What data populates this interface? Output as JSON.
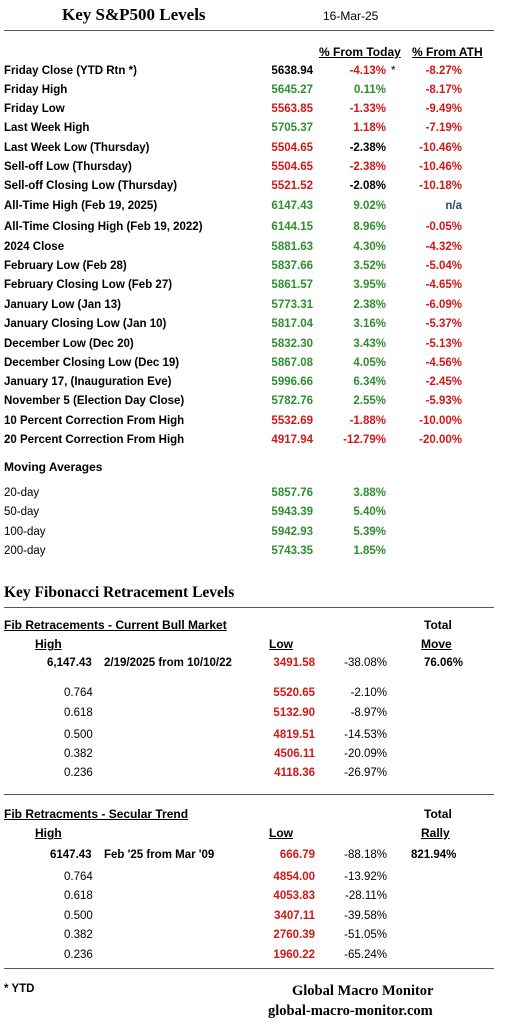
{
  "title": "Key S&P500 Levels",
  "date": "16-Mar-25",
  "headers": {
    "from_today": "% From Today",
    "from_ath": "% From ATH"
  },
  "rows": [
    {
      "label": "Friday Close (YTD Rtn *)",
      "value": "5638.94",
      "value_color": "#000000",
      "pct": "-4.13%",
      "pct_color": "#d01818",
      "mark": "*",
      "ath": "-8.27%",
      "ath_color": "#d01818"
    },
    {
      "label": "Friday High",
      "value": "5645.27",
      "value_color": "#2f8f2f",
      "pct": "0.11%",
      "pct_color": "#2f8f2f",
      "mark": "",
      "ath": "-8.17%",
      "ath_color": "#d01818"
    },
    {
      "label": "Friday Low",
      "value": "5563.85",
      "value_color": "#d01818",
      "pct": "-1.33%",
      "pct_color": "#d01818",
      "mark": "",
      "ath": "-9.49%",
      "ath_color": "#d01818"
    },
    {
      "label": "Last Week High",
      "value": "5705.37",
      "value_color": "#2f8f2f",
      "pct": "1.18%",
      "pct_color": "#d01818",
      "mark": "",
      "ath": "-7.19%",
      "ath_color": "#d01818"
    },
    {
      "label": "Last Week Low (Thursday)",
      "value": "5504.65",
      "value_color": "#d01818",
      "pct": "-2.38%",
      "pct_color": "#000000",
      "mark": "",
      "ath": "-10.46%",
      "ath_color": "#d01818"
    },
    {
      "label": "Sell-off Low (Thursday)",
      "value": "5504.65",
      "value_color": "#d01818",
      "pct": "-2.38%",
      "pct_color": "#d01818",
      "mark": "",
      "ath": "-10.46%",
      "ath_color": "#d01818"
    },
    {
      "label": "Sell-off Closing Low (Thursday)",
      "value": "5521.52",
      "value_color": "#d01818",
      "pct": "-2.08%",
      "pct_color": "#000000",
      "mark": "",
      "ath": "-10.18%",
      "ath_color": "#d01818"
    },
    {
      "label": "All-Time High (Feb 19, 2025)",
      "value": "6147.43",
      "value_color": "#2f8f2f",
      "pct": "9.02%",
      "pct_color": "#2f8f2f",
      "mark": "",
      "ath": "n/a",
      "ath_color": "#1f4e79"
    },
    {
      "label": "All-Time Closing High (Feb 19, 2022)",
      "value": "6144.15",
      "value_color": "#2f8f2f",
      "pct": "8.96%",
      "pct_color": "#2f8f2f",
      "mark": "",
      "ath": "-0.05%",
      "ath_color": "#d01818"
    },
    {
      "label": "2024 Close",
      "value": "5881.63",
      "value_color": "#2f8f2f",
      "pct": "4.30%",
      "pct_color": "#2f8f2f",
      "mark": "",
      "ath": "-4.32%",
      "ath_color": "#d01818"
    },
    {
      "label": "February Low (Feb 28)",
      "value": "5837.66",
      "value_color": "#2f8f2f",
      "pct": "3.52%",
      "pct_color": "#2f8f2f",
      "mark": "",
      "ath": "-5.04%",
      "ath_color": "#d01818"
    },
    {
      "label": "February Closing Low (Feb 27)",
      "value": "5861.57",
      "value_color": "#2f8f2f",
      "pct": "3.95%",
      "pct_color": "#2f8f2f",
      "mark": "",
      "ath": "-4.65%",
      "ath_color": "#d01818"
    },
    {
      "label": "January Low (Jan 13)",
      "value": "5773.31",
      "value_color": "#2f8f2f",
      "pct": "2.38%",
      "pct_color": "#2f8f2f",
      "mark": "",
      "ath": "-6.09%",
      "ath_color": "#d01818"
    },
    {
      "label": "January Closing Low (Jan 10)",
      "value": "5817.04",
      "value_color": "#2f8f2f",
      "pct": "3.16%",
      "pct_color": "#2f8f2f",
      "mark": "",
      "ath": "-5.37%",
      "ath_color": "#d01818"
    },
    {
      "label": "December Low (Dec 20)",
      "value": "5832.30",
      "value_color": "#2f8f2f",
      "pct": "3.43%",
      "pct_color": "#2f8f2f",
      "mark": "",
      "ath": "-5.13%",
      "ath_color": "#d01818"
    },
    {
      "label": "December Closing Low (Dec 19)",
      "value": "5867.08",
      "value_color": "#2f8f2f",
      "pct": "4.05%",
      "pct_color": "#2f8f2f",
      "mark": "",
      "ath": "-4.56%",
      "ath_color": "#d01818"
    },
    {
      "label": "January 17, (Inauguration Eve)",
      "value": "5996.66",
      "value_color": "#2f8f2f",
      "pct": "6.34%",
      "pct_color": "#2f8f2f",
      "mark": "",
      "ath": "-2.45%",
      "ath_color": "#d01818"
    },
    {
      "label": "November 5 (Election Day Close)",
      "value": "5782.76",
      "value_color": "#2f8f2f",
      "pct": "2.55%",
      "pct_color": "#2f8f2f",
      "mark": "",
      "ath": "-5.93%",
      "ath_color": "#d01818"
    },
    {
      "label": "10 Percent Correction From High",
      "value": "5532.69",
      "value_color": "#d01818",
      "pct": "-1.88%",
      "pct_color": "#d01818",
      "mark": "",
      "ath": "-10.00%",
      "ath_color": "#d01818"
    },
    {
      "label": "20 Percent Correction From High",
      "value": "4917.94",
      "value_color": "#d01818",
      "pct": "-12.79%",
      "pct_color": "#d01818",
      "mark": "",
      "ath": "-20.00%",
      "ath_color": "#d01818"
    }
  ],
  "moving_averages": {
    "title": "Moving Averages",
    "rows": [
      {
        "label": "20-day",
        "value": "5857.76",
        "value_color": "#2f8f2f",
        "pct": "3.88%",
        "pct_color": "#2f8f2f"
      },
      {
        "label": "50-day",
        "value": "5943.39",
        "value_color": "#2f8f2f",
        "pct": "5.40%",
        "pct_color": "#2f8f2f"
      },
      {
        "label": "100-day",
        "value": "5942.93",
        "value_color": "#2f8f2f",
        "pct": "5.39%",
        "pct_color": "#2f8f2f"
      },
      {
        "label": "200-day",
        "value": "5743.35",
        "value_color": "#2f8f2f",
        "pct": "1.85%",
        "pct_color": "#2f8f2f"
      }
    ]
  },
  "fib": {
    "title": "Key Fibonacci Retracement Levels",
    "bull": {
      "section": "Fib Retracements - Current Bull Market",
      "high_hdr": "High",
      "low_hdr": "Low",
      "total_hdr_1": "Total",
      "total_hdr_2": "Move",
      "high": "6,147.43",
      "desc": "2/19/2025 from 10/10/22",
      "low": "3491.58",
      "pct": "-38.08%",
      "total": "76.06%",
      "levels": [
        {
          "ratio": "0.764",
          "value": "5520.65",
          "pct": "-2.10%"
        },
        {
          "ratio": "0.618",
          "value": "5132.90",
          "pct": "-8.97%"
        },
        {
          "ratio": "0.500",
          "value": "4819.51",
          "pct": "-14.53%"
        },
        {
          "ratio": "0.382",
          "value": "4506.11",
          "pct": "-20.09%"
        },
        {
          "ratio": "0.236",
          "value": "4118.36",
          "pct": "-26.97%"
        }
      ]
    },
    "secular": {
      "section": "Fib Retracments - Secular Trend",
      "high_hdr": "High",
      "low_hdr": "Low",
      "total_hdr_1": "Total",
      "total_hdr_2": "Rally",
      "high": "6147.43",
      "desc": "Feb '25 from Mar '09",
      "low": "666.79",
      "pct": "-88.18%",
      "total": "821.94%",
      "levels": [
        {
          "ratio": "0.764",
          "value": "4854.00",
          "pct": "-13.92%"
        },
        {
          "ratio": "0.618",
          "value": "4053.83",
          "pct": "-28.11%"
        },
        {
          "ratio": "0.500",
          "value": "3407.11",
          "pct": "-39.58%"
        },
        {
          "ratio": "0.382",
          "value": "2760.39",
          "pct": "-51.05%"
        },
        {
          "ratio": "0.236",
          "value": "1960.22",
          "pct": "-65.24%"
        }
      ]
    }
  },
  "footer": {
    "note": "* YTD",
    "brand": "Global Macro Monitor",
    "site": "global-macro-monitor.com"
  }
}
